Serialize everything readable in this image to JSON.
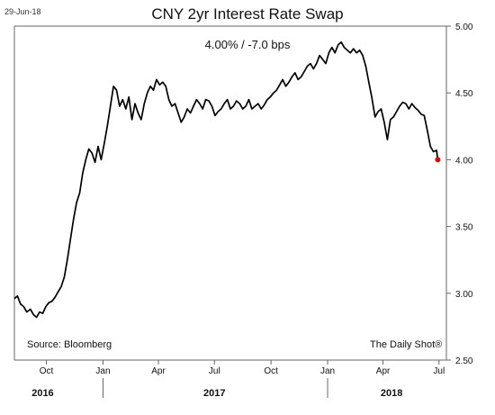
{
  "header": {
    "date": "29-Jun-18",
    "title": "CNY 2yr Interest Rate Swap",
    "subtitle": "4.00%  /  -7.0 bps"
  },
  "footer": {
    "source": "Source: Bloomberg",
    "credit": "The Daily Shot®"
  },
  "colors": {
    "line": "#000000",
    "last_point": "#e00000",
    "axis": "#666666"
  },
  "chart_data": {
    "type": "line",
    "title": "CNY 2yr Interest Rate Swap",
    "subtitle": "4.00%  /  -7.0 bps",
    "xlabel": "",
    "ylabel": "",
    "xlim": [
      "2016-08-10",
      "2018-07-13"
    ],
    "ylim": [
      2.5,
      5.0
    ],
    "yticks": [
      2.5,
      3.0,
      3.5,
      4.0,
      4.5,
      5.0
    ],
    "ytick_labels": [
      "2.50",
      "3.00",
      "3.50",
      "4.00",
      "4.50",
      "5.00"
    ],
    "y_axis_position": "right",
    "grid": false,
    "legend": "none",
    "xticks": [
      {
        "date": "2016-10-01",
        "label": "Oct"
      },
      {
        "date": "2017-01-01",
        "label": "Jan"
      },
      {
        "date": "2017-04-01",
        "label": "Apr"
      },
      {
        "date": "2017-07-01",
        "label": "Jul"
      },
      {
        "date": "2017-10-01",
        "label": "Oct"
      },
      {
        "date": "2018-01-01",
        "label": "Jan"
      },
      {
        "date": "2018-04-01",
        "label": "Apr"
      },
      {
        "date": "2018-07-01",
        "label": "Jul"
      }
    ],
    "year_labels": [
      {
        "label": "2016",
        "center": "2016-09-25"
      },
      {
        "label": "2017",
        "center": "2017-07-01"
      },
      {
        "label": "2018",
        "center": "2018-04-15"
      }
    ],
    "year_separators": [
      "2017-01-01",
      "2018-01-01"
    ],
    "series": [
      {
        "x": [
          "2016-08-10",
          "2016-08-15",
          "2016-08-20",
          "2016-08-25",
          "2016-08-30",
          "2016-09-05",
          "2016-09-10",
          "2016-09-15",
          "2016-09-20",
          "2016-09-25",
          "2016-09-30",
          "2016-10-05",
          "2016-10-10",
          "2016-10-15",
          "2016-10-20",
          "2016-10-25",
          "2016-10-30",
          "2016-11-04",
          "2016-11-09",
          "2016-11-14",
          "2016-11-19",
          "2016-11-24",
          "2016-11-29",
          "2016-12-04",
          "2016-12-09",
          "2016-12-14",
          "2016-12-19",
          "2016-12-24",
          "2016-12-29",
          "2017-01-03",
          "2017-01-08",
          "2017-01-13",
          "2017-01-18",
          "2017-01-23",
          "2017-01-28",
          "2017-02-02",
          "2017-02-07",
          "2017-02-12",
          "2017-02-17",
          "2017-02-22",
          "2017-02-27",
          "2017-03-04",
          "2017-03-09",
          "2017-03-14",
          "2017-03-19",
          "2017-03-24",
          "2017-03-29",
          "2017-04-03",
          "2017-04-08",
          "2017-04-13",
          "2017-04-18",
          "2017-04-23",
          "2017-04-28",
          "2017-05-03",
          "2017-05-08",
          "2017-05-13",
          "2017-05-18",
          "2017-05-23",
          "2017-05-28",
          "2017-06-02",
          "2017-06-07",
          "2017-06-12",
          "2017-06-17",
          "2017-06-22",
          "2017-06-27",
          "2017-07-02",
          "2017-07-07",
          "2017-07-12",
          "2017-07-17",
          "2017-07-22",
          "2017-07-27",
          "2017-08-01",
          "2017-08-06",
          "2017-08-11",
          "2017-08-16",
          "2017-08-21",
          "2017-08-26",
          "2017-08-31",
          "2017-09-05",
          "2017-09-10",
          "2017-09-15",
          "2017-09-20",
          "2017-09-25",
          "2017-09-30",
          "2017-10-05",
          "2017-10-10",
          "2017-10-15",
          "2017-10-20",
          "2017-10-25",
          "2017-10-30",
          "2017-11-04",
          "2017-11-09",
          "2017-11-14",
          "2017-11-19",
          "2017-11-24",
          "2017-11-29",
          "2017-12-04",
          "2017-12-09",
          "2017-12-14",
          "2017-12-19",
          "2017-12-24",
          "2017-12-29",
          "2018-01-03",
          "2018-01-08",
          "2018-01-13",
          "2018-01-18",
          "2018-01-23",
          "2018-01-28",
          "2018-02-02",
          "2018-02-07",
          "2018-02-12",
          "2018-02-17",
          "2018-02-22",
          "2018-02-27",
          "2018-03-04",
          "2018-03-09",
          "2018-03-14",
          "2018-03-19",
          "2018-03-24",
          "2018-03-29",
          "2018-04-03",
          "2018-04-08",
          "2018-04-13",
          "2018-04-18",
          "2018-04-23",
          "2018-04-28",
          "2018-05-03",
          "2018-05-08",
          "2018-05-13",
          "2018-05-18",
          "2018-05-23",
          "2018-05-28",
          "2018-06-02",
          "2018-06-07",
          "2018-06-12",
          "2018-06-17",
          "2018-06-22",
          "2018-06-27",
          "2018-06-29"
        ],
        "values": [
          2.96,
          2.98,
          2.92,
          2.9,
          2.86,
          2.88,
          2.84,
          2.82,
          2.86,
          2.85,
          2.9,
          2.93,
          2.94,
          2.97,
          3.01,
          3.05,
          3.12,
          3.25,
          3.4,
          3.55,
          3.68,
          3.75,
          3.9,
          4.0,
          4.08,
          4.05,
          3.98,
          4.1,
          4.0,
          4.12,
          4.25,
          4.4,
          4.55,
          4.52,
          4.4,
          4.45,
          4.38,
          4.47,
          4.3,
          4.42,
          4.35,
          4.3,
          4.42,
          4.5,
          4.55,
          4.52,
          4.6,
          4.56,
          4.58,
          4.55,
          4.45,
          4.4,
          4.42,
          4.35,
          4.28,
          4.32,
          4.38,
          4.35,
          4.4,
          4.45,
          4.42,
          4.38,
          4.45,
          4.44,
          4.4,
          4.33,
          4.36,
          4.38,
          4.42,
          4.45,
          4.38,
          4.4,
          4.44,
          4.42,
          4.38,
          4.4,
          4.45,
          4.38,
          4.4,
          4.42,
          4.38,
          4.41,
          4.45,
          4.47,
          4.5,
          4.52,
          4.56,
          4.6,
          4.55,
          4.58,
          4.62,
          4.65,
          4.6,
          4.62,
          4.66,
          4.7,
          4.72,
          4.68,
          4.72,
          4.78,
          4.75,
          4.72,
          4.8,
          4.84,
          4.8,
          4.86,
          4.88,
          4.84,
          4.82,
          4.8,
          4.83,
          4.8,
          4.82,
          4.78,
          4.7,
          4.58,
          4.46,
          4.32,
          4.36,
          4.38,
          4.28,
          4.15,
          4.3,
          4.32,
          4.36,
          4.4,
          4.43,
          4.42,
          4.38,
          4.42,
          4.39,
          4.37,
          4.34,
          4.33,
          4.22,
          4.1,
          4.06,
          4.07,
          4.0
        ]
      }
    ]
  }
}
